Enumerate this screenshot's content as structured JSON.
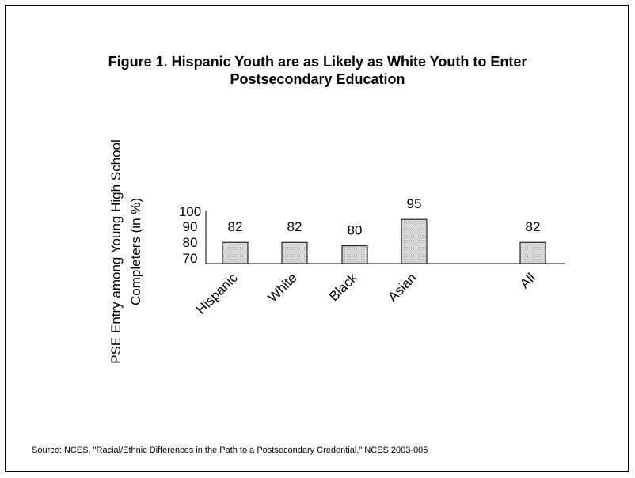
{
  "chart_data": {
    "type": "bar",
    "title_lines": [
      "Figure 1. Hispanic Youth are as Likely as White Youth to Enter",
      "Postsecondary Education"
    ],
    "ylabel_lines": [
      "PSE Entry among Young High School",
      "Completers (in %)"
    ],
    "categories": [
      "Hispanic",
      "White",
      "Black",
      "Asian",
      "All"
    ],
    "values": [
      82,
      82,
      80,
      95,
      82
    ],
    "value_labels": [
      "82",
      "82",
      "80",
      "95",
      "82"
    ],
    "yticks": [
      "100",
      "90",
      "80",
      "70"
    ],
    "ylim": [
      70,
      100
    ],
    "bar_fill": "#d0d0d0",
    "source": "Source: NCES, \"Racial/Ethnic Differences in the Path to a Postsecondary Credential,\" NCES 2003-005"
  }
}
